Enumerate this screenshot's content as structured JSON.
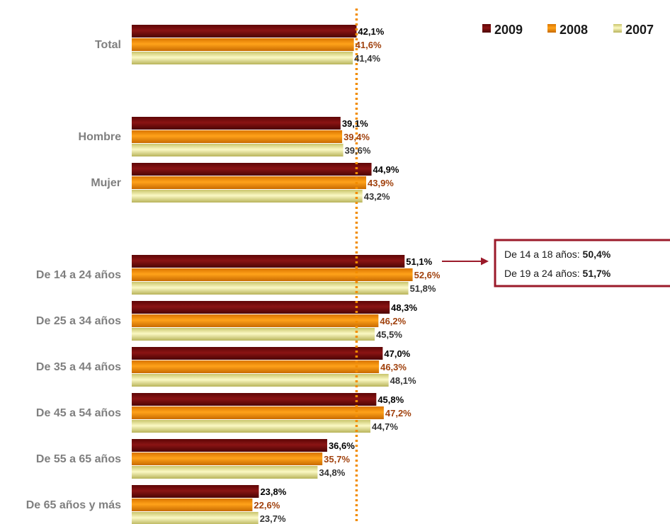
{
  "chart_data": {
    "type": "bar",
    "orientation": "horizontal",
    "categories": [
      "Total",
      "Hombre",
      "Mujer",
      "De 14 a 24 años",
      "De 25 a 34 años",
      "De 35 a 44 años",
      "De 45 a 54 años",
      "De 55 a 65 años",
      "De 65 años y más"
    ],
    "series": [
      {
        "name": "2009",
        "color": "#7b0c0c",
        "label_color": "#000000",
        "values": [
          42.1,
          39.1,
          44.9,
          51.1,
          48.3,
          47.0,
          45.8,
          36.6,
          23.8
        ],
        "labels": [
          "42,1%",
          "39,1%",
          "44,9%",
          "51,1%",
          "48,3%",
          "47,0%",
          "45,8%",
          "36,6%",
          "23,8%"
        ]
      },
      {
        "name": "2008",
        "color": "#f28c00",
        "label_color": "#a0410d",
        "values": [
          41.6,
          39.4,
          43.9,
          52.6,
          46.2,
          46.3,
          47.2,
          35.7,
          22.6
        ],
        "labels": [
          "41,6%",
          "39,4%",
          "43,9%",
          "52,6%",
          "46,2%",
          "46,3%",
          "47,2%",
          "35,7%",
          "22,6%"
        ]
      },
      {
        "name": "2007",
        "color": "#e6e28a",
        "label_color": "#333333",
        "values": [
          41.4,
          39.6,
          43.2,
          51.8,
          45.5,
          48.1,
          44.7,
          34.8,
          23.7
        ],
        "labels": [
          "41,4%",
          "39,6%",
          "43,2%",
          "51,8%",
          "45,5%",
          "48,1%",
          "44,7%",
          "34,8%",
          "23,7%"
        ]
      }
    ],
    "reference_line": {
      "value": 42.1,
      "color": "#f28c00",
      "style": "dotted"
    },
    "legend": {
      "position": "top-right",
      "entries": [
        "2009",
        "2008",
        "2007"
      ]
    },
    "grid": false,
    "callout": {
      "attached_to": "De 14 a 24 años",
      "border_color": "#9b1a2a",
      "lines": [
        {
          "prefix": "De 14 a 18 años: ",
          "value": "50,4%"
        },
        {
          "prefix": "De 19 a 24 años: ",
          "value": "51,7%"
        }
      ]
    }
  }
}
